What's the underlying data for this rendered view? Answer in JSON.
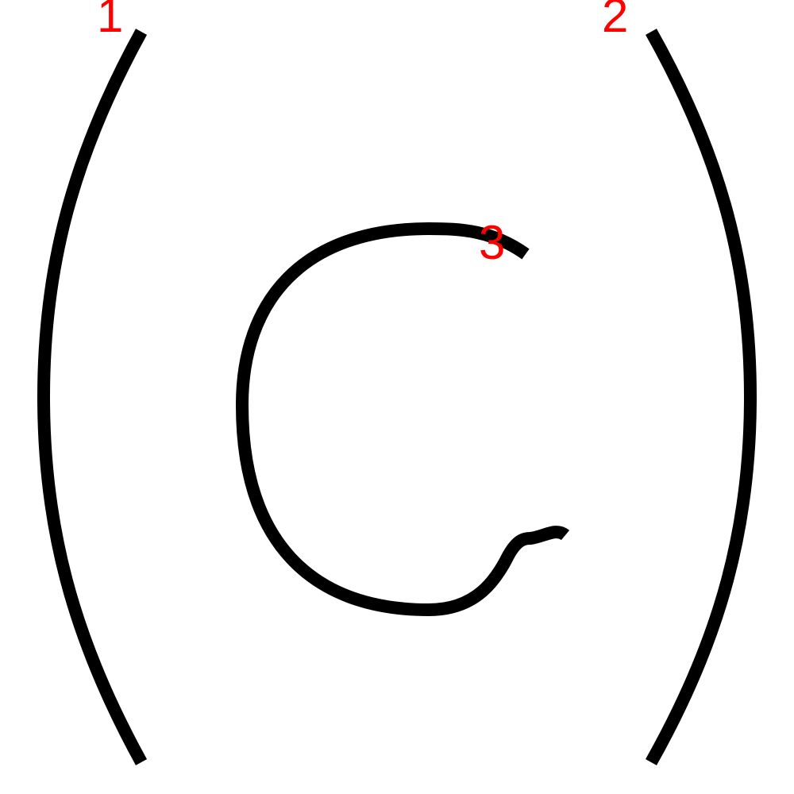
{
  "diagram": {
    "type": "stroke-order",
    "stroke_color": "#000000",
    "label_color": "#ff0000",
    "strokes": [
      {
        "id": 1,
        "label": "1",
        "shape": "left-parenthesis"
      },
      {
        "id": 2,
        "label": "2",
        "shape": "right-parenthesis"
      },
      {
        "id": 3,
        "label": "3",
        "shape": "letter-c"
      }
    ]
  }
}
